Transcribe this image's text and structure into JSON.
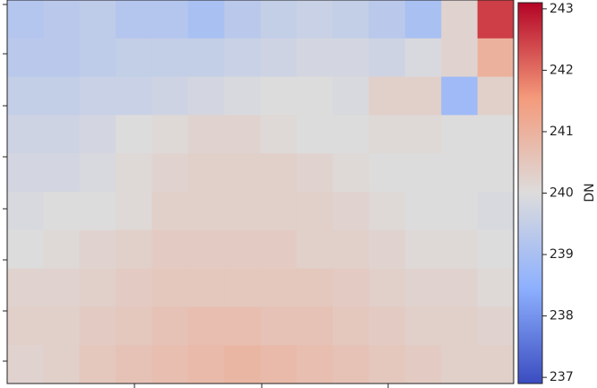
{
  "chart_data": {
    "type": "heatmap",
    "colormap": [
      "#3b4cc0",
      "#8db0fe",
      "#dddcdc",
      "#f49a7b",
      "#b40426"
    ],
    "zlim": [
      236.9,
      243.1
    ],
    "zticks": [
      237,
      238,
      239,
      240,
      241,
      242,
      243
    ],
    "colorbar_label": "DN",
    "z": [
      [
        239.2,
        239.3,
        239.4,
        239.2,
        239.2,
        239.0,
        239.3,
        239.5,
        239.6,
        239.5,
        239.3,
        239.0,
        240.2,
        242.5
      ],
      [
        239.3,
        239.3,
        239.4,
        239.5,
        239.5,
        239.5,
        239.6,
        239.7,
        239.8,
        239.8,
        239.7,
        239.9,
        240.2,
        241.0
      ],
      [
        239.5,
        239.5,
        239.6,
        239.6,
        239.7,
        239.8,
        239.9,
        240.0,
        240.0,
        239.9,
        240.3,
        240.3,
        238.8,
        240.3
      ],
      [
        239.7,
        239.7,
        239.8,
        240.0,
        240.1,
        240.2,
        240.2,
        240.1,
        240.0,
        240.0,
        240.1,
        240.1,
        240.0,
        240.0
      ],
      [
        239.8,
        239.8,
        239.9,
        240.1,
        240.2,
        240.3,
        240.3,
        240.3,
        240.2,
        240.1,
        240.0,
        240.0,
        240.0,
        240.0
      ],
      [
        239.9,
        240.0,
        240.0,
        240.1,
        240.3,
        240.3,
        240.3,
        240.3,
        240.3,
        240.2,
        240.1,
        240.0,
        240.0,
        239.9
      ],
      [
        240.0,
        240.1,
        240.2,
        240.3,
        240.4,
        240.4,
        240.4,
        240.4,
        240.3,
        240.3,
        240.2,
        240.1,
        240.1,
        240.0
      ],
      [
        240.2,
        240.2,
        240.3,
        240.4,
        240.5,
        240.5,
        240.5,
        240.5,
        240.5,
        240.4,
        240.3,
        240.2,
        240.2,
        240.1
      ],
      [
        240.3,
        240.3,
        240.4,
        240.5,
        240.6,
        240.7,
        240.7,
        240.6,
        240.6,
        240.5,
        240.4,
        240.3,
        240.3,
        240.2
      ],
      [
        240.2,
        240.3,
        240.5,
        240.6,
        240.7,
        240.8,
        240.9,
        240.8,
        240.7,
        240.6,
        240.5,
        240.4,
        240.3,
        240.3
      ]
    ]
  }
}
